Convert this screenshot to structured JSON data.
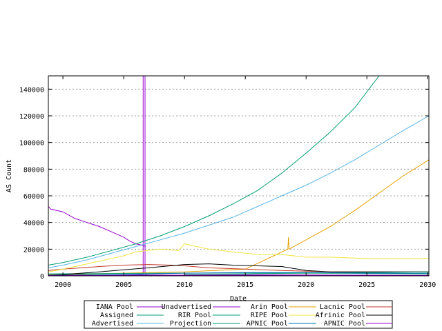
{
  "chart_data": {
    "type": "line",
    "xlabel": "Date",
    "ylabel": "AS Count",
    "xlim": [
      1998.8,
      2030.1
    ],
    "ylim": [
      0,
      150000
    ],
    "x_ticks": [
      {
        "value": 2000,
        "label": "2000"
      },
      {
        "value": 2005,
        "label": "2005"
      },
      {
        "value": 2010,
        "label": "2010"
      },
      {
        "value": 2015,
        "label": "2015"
      },
      {
        "value": 2020,
        "label": "2020"
      },
      {
        "value": 2025,
        "label": "2025"
      },
      {
        "value": 2030,
        "label": "2030"
      }
    ],
    "y_ticks": [
      {
        "value": 0,
        "label": "0"
      },
      {
        "value": 20000,
        "label": "20000"
      },
      {
        "value": 40000,
        "label": "40000"
      },
      {
        "value": 60000,
        "label": "60000"
      },
      {
        "value": 80000,
        "label": "80000"
      },
      {
        "value": 100000,
        "label": "100000"
      },
      {
        "value": 120000,
        "label": "120000"
      },
      {
        "value": 140000,
        "label": "140000"
      }
    ],
    "grid": true,
    "legend_position": "bottom",
    "series": [
      {
        "name": "IANA Pool",
        "color": "#9400d3",
        "x": [
          1999,
          2006.6,
          2006.6,
          2006.75,
          2006.75,
          2007,
          2010,
          2015,
          2020,
          2025,
          2030
        ],
        "y": [
          800,
          700,
          150000,
          150000,
          700,
          600,
          400,
          300,
          200,
          100,
          0
        ]
      },
      {
        "name": "Unadvertised",
        "color": "#9400d3",
        "x": [
          1998.8,
          1999,
          2000,
          2001,
          2002,
          2003,
          2004,
          2004.5,
          2005,
          2005.5,
          2006,
          2006.5,
          2006.8
        ],
        "y": [
          52000,
          50000,
          48000,
          43000,
          40000,
          37000,
          33000,
          31000,
          29000,
          26000,
          24000,
          23000,
          22000
        ]
      },
      {
        "name": "Arin Pool",
        "color": "#e69f00",
        "x": [
          1998.8,
          2000,
          2005,
          2010,
          2015,
          2018.5,
          2018.55,
          2018.6,
          2020,
          2022,
          2024,
          2026,
          2028,
          2030.1
        ],
        "y": [
          800,
          1000,
          2000,
          3000,
          5000,
          20000,
          29000,
          20000,
          27000,
          37000,
          49000,
          62000,
          75000,
          87000
        ]
      },
      {
        "name": "Lacnic Pool",
        "color": "#c0392b",
        "x": [
          1998.8,
          2000,
          2003,
          2005,
          2007,
          2009,
          2010,
          2012,
          2015,
          2018,
          2020,
          2022,
          2025,
          2030.1
        ],
        "y": [
          4000,
          5000,
          7000,
          8000,
          8500,
          8000,
          7500,
          6000,
          5000,
          4000,
          3500,
          3000,
          3000,
          3000
        ]
      },
      {
        "name": "Assigned",
        "color": "#009e73",
        "x": [
          1998.8,
          2000,
          2002,
          2004,
          2006,
          2008,
          2010,
          2012,
          2014,
          2016,
          2018,
          2020,
          2022,
          2024,
          2026
        ],
        "y": [
          8000,
          10000,
          14000,
          19000,
          24000,
          30000,
          37000,
          45000,
          54000,
          64000,
          77000,
          92000,
          108000,
          126000,
          150000
        ]
      },
      {
        "name": "RIR Pool",
        "color": "#009e73",
        "x": [
          1998.8,
          2005,
          2010,
          2015,
          2020,
          2025,
          2030.1
        ],
        "y": [
          1500,
          1800,
          2000,
          2200,
          2000,
          1800,
          1500
        ]
      },
      {
        "name": "RIPE Pool",
        "color": "#f0e442",
        "x": [
          1998.8,
          2000,
          2002,
          2004,
          2005,
          2006,
          2008,
          2009.5,
          2010,
          2012,
          2014,
          2015,
          2016,
          2018,
          2020,
          2022,
          2025,
          2028,
          2030.1
        ],
        "y": [
          3000,
          5000,
          9000,
          13000,
          15000,
          18000,
          20000,
          19000,
          24000,
          20000,
          18000,
          17000,
          16000,
          16000,
          14000,
          14000,
          13000,
          13000,
          13000
        ]
      },
      {
        "name": "Afrinic Pool",
        "color": "#000000",
        "x": [
          1998.8,
          2000,
          2003,
          2005,
          2007,
          2010,
          2012,
          2014,
          2016,
          2018,
          2020,
          2022,
          2025,
          2030.1
        ],
        "y": [
          500,
          1000,
          3000,
          4500,
          6000,
          8500,
          9000,
          8000,
          7500,
          7000,
          4000,
          3000,
          3000,
          3000
        ]
      },
      {
        "name": "Advertised",
        "color": "#56b4e9",
        "x": [
          1998.8,
          2000,
          2002,
          2004,
          2006,
          2008,
          2010,
          2012,
          2014,
          2015,
          2016,
          2018,
          2020,
          2022,
          2024,
          2026,
          2028,
          2030.1
        ],
        "y": [
          6000,
          8000,
          12000,
          17000,
          22000,
          27000,
          32000,
          38000,
          44000,
          48000,
          52000,
          60000,
          68000,
          77000,
          87000,
          98000,
          109000,
          120000
        ]
      },
      {
        "name": "Projection",
        "color": "#009e73",
        "x": [
          2010,
          2015,
          2020,
          2025,
          2030.1
        ],
        "y": [
          1000,
          1500,
          2000,
          2500,
          3000
        ]
      },
      {
        "name": "APNIC Pool",
        "color": "#0072b2",
        "x": [
          1998.8,
          2000,
          2005,
          2010,
          2015,
          2020,
          2025,
          2030.1
        ],
        "y": [
          300,
          500,
          1000,
          2000,
          2500,
          2500,
          2000,
          2000
        ]
      },
      {
        "name": "APNIC Pool",
        "color": "#9400d3",
        "x": [
          1998.8,
          2005,
          2010,
          2015,
          2020,
          2025,
          2030.1
        ],
        "y": [
          200,
          300,
          500,
          700,
          600,
          500,
          400
        ]
      }
    ]
  }
}
